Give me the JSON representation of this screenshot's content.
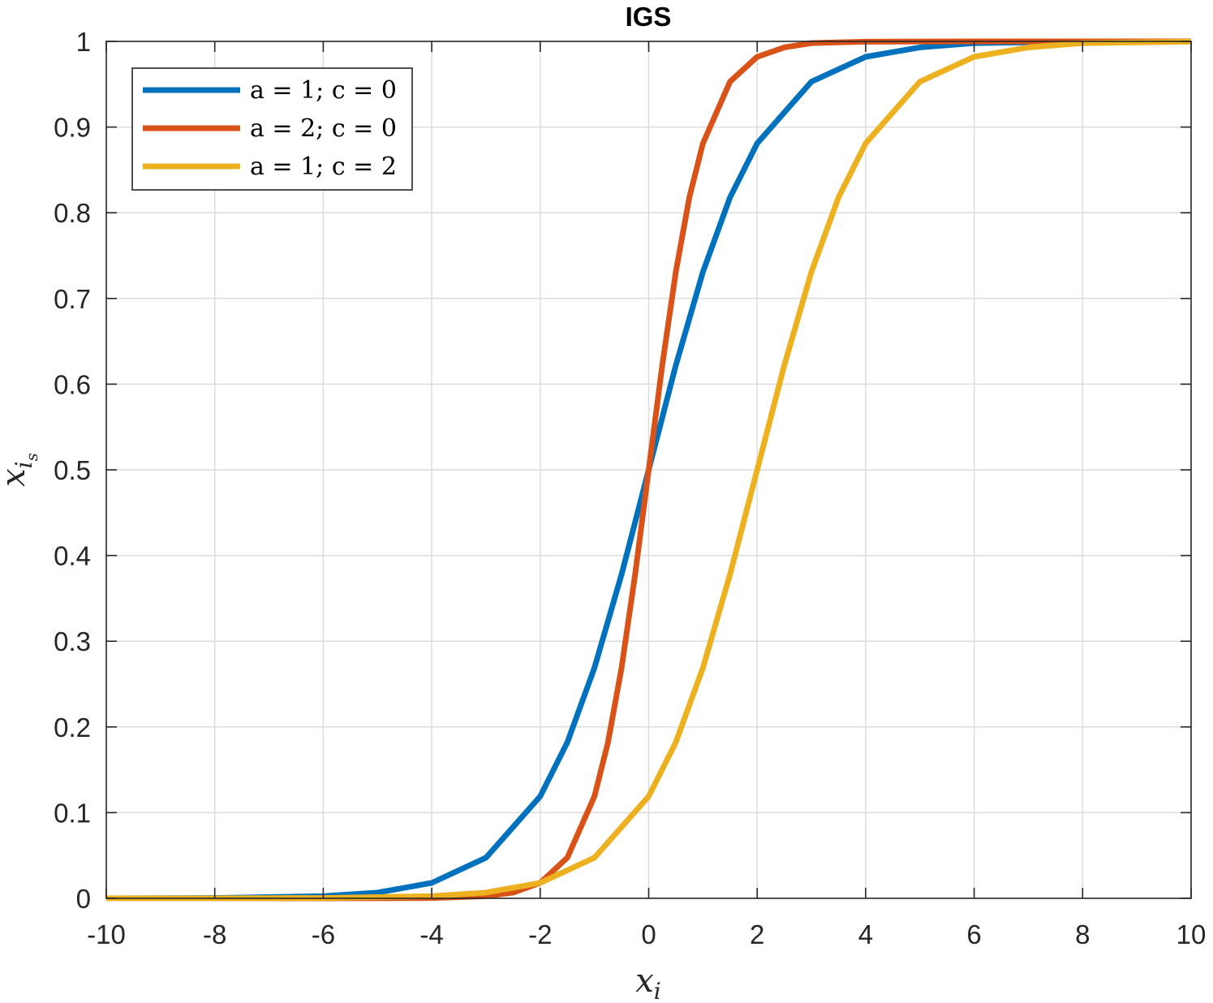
{
  "chart_data": {
    "type": "line",
    "title": "IGS",
    "xlabel": "x_i",
    "ylabel": "x_is",
    "xlim": [
      -10,
      10
    ],
    "ylim": [
      0,
      1
    ],
    "xticks": [
      -10,
      -8,
      -6,
      -4,
      -2,
      0,
      2,
      4,
      6,
      8,
      10
    ],
    "yticks": [
      0,
      0.1,
      0.2,
      0.3,
      0.4,
      0.5,
      0.6,
      0.7,
      0.8,
      0.9,
      1
    ],
    "xtick_labels": [
      "-10",
      "-8",
      "-6",
      "-4",
      "-2",
      "0",
      "2",
      "4",
      "6",
      "8",
      "10"
    ],
    "ytick_labels": [
      "0",
      "0.1",
      "0.2",
      "0.3",
      "0.4",
      "0.5",
      "0.6",
      "0.7",
      "0.8",
      "0.9",
      "1"
    ],
    "grid": true,
    "legend_position": "top-left",
    "series": [
      {
        "name": "a = 1; c = 0",
        "color": "#0072BD",
        "x": [
          -10,
          -8,
          -6,
          -5,
          -4,
          -3,
          -2,
          -1.5,
          -1,
          -0.5,
          0,
          0.5,
          1,
          1.5,
          2,
          3,
          4,
          5,
          6,
          8,
          10
        ],
        "values": [
          4.54e-05,
          0.000335,
          0.00247,
          0.00669,
          0.018,
          0.0474,
          0.119,
          0.182,
          0.269,
          0.378,
          0.5,
          0.622,
          0.731,
          0.818,
          0.881,
          0.953,
          0.982,
          0.993,
          0.998,
          0.9997,
          0.99995
        ]
      },
      {
        "name": "a = 2; c = 0",
        "color": "#D95319",
        "x": [
          -10,
          -6,
          -4,
          -3,
          -2.5,
          -2,
          -1.5,
          -1,
          -0.75,
          -0.5,
          -0.25,
          0,
          0.25,
          0.5,
          0.75,
          1,
          1.5,
          2,
          2.5,
          3,
          4,
          6,
          10
        ],
        "values": [
          2e-09,
          6.1e-06,
          0.000335,
          0.00247,
          0.00669,
          0.018,
          0.0474,
          0.119,
          0.182,
          0.269,
          0.378,
          0.5,
          0.622,
          0.731,
          0.818,
          0.881,
          0.953,
          0.982,
          0.993,
          0.998,
          0.9997,
          0.999994,
          1.0
        ]
      },
      {
        "name": "a = 1; c = 2",
        "color": "#EDB120",
        "x": [
          -10,
          -8,
          -6,
          -4,
          -3,
          -2,
          -1,
          0,
          0.5,
          1,
          1.5,
          2,
          2.5,
          3,
          3.5,
          4,
          5,
          6,
          7,
          8,
          10
        ],
        "values": [
          6.1e-06,
          4.54e-05,
          0.000335,
          0.00247,
          0.00669,
          0.018,
          0.0474,
          0.119,
          0.182,
          0.269,
          0.378,
          0.5,
          0.622,
          0.731,
          0.818,
          0.881,
          0.953,
          0.982,
          0.993,
          0.998,
          0.9997
        ]
      }
    ]
  }
}
